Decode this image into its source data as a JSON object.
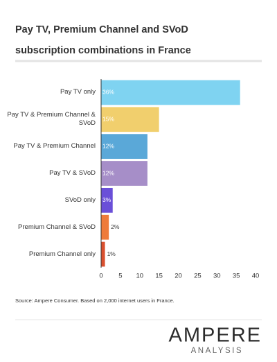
{
  "chart_data": {
    "type": "bar",
    "orientation": "horizontal",
    "title": "Pay TV, Premium Channel and SVoD subscription combinations in France",
    "categories": [
      "Pay TV only",
      "Pay TV & Premium Channel & SVoD",
      "Pay TV & Premium Channel",
      "Pay TV & SVoD",
      "SVoD only",
      "Premium Channel & SVoD",
      "Premium Channel only"
    ],
    "values": [
      36,
      15,
      12,
      12,
      3,
      2,
      1
    ],
    "value_labels": [
      "36%",
      "15%",
      "12%",
      "12%",
      "3%",
      "2%",
      "1%"
    ],
    "colors": [
      "#7fd3f1",
      "#f1cf6d",
      "#5aa8d8",
      "#a68ec8",
      "#6a4fd8",
      "#ee7b3b",
      "#d9502f"
    ],
    "xlim": [
      0,
      40
    ],
    "xticks": [
      0,
      5,
      10,
      15,
      20,
      25,
      30,
      35,
      40
    ],
    "grid": false,
    "source": "Source: Ampere Consumer. Based on 2,000 internet users in France.",
    "logo": "AMPERE",
    "logo_subtitle": "ANALYSIS"
  }
}
